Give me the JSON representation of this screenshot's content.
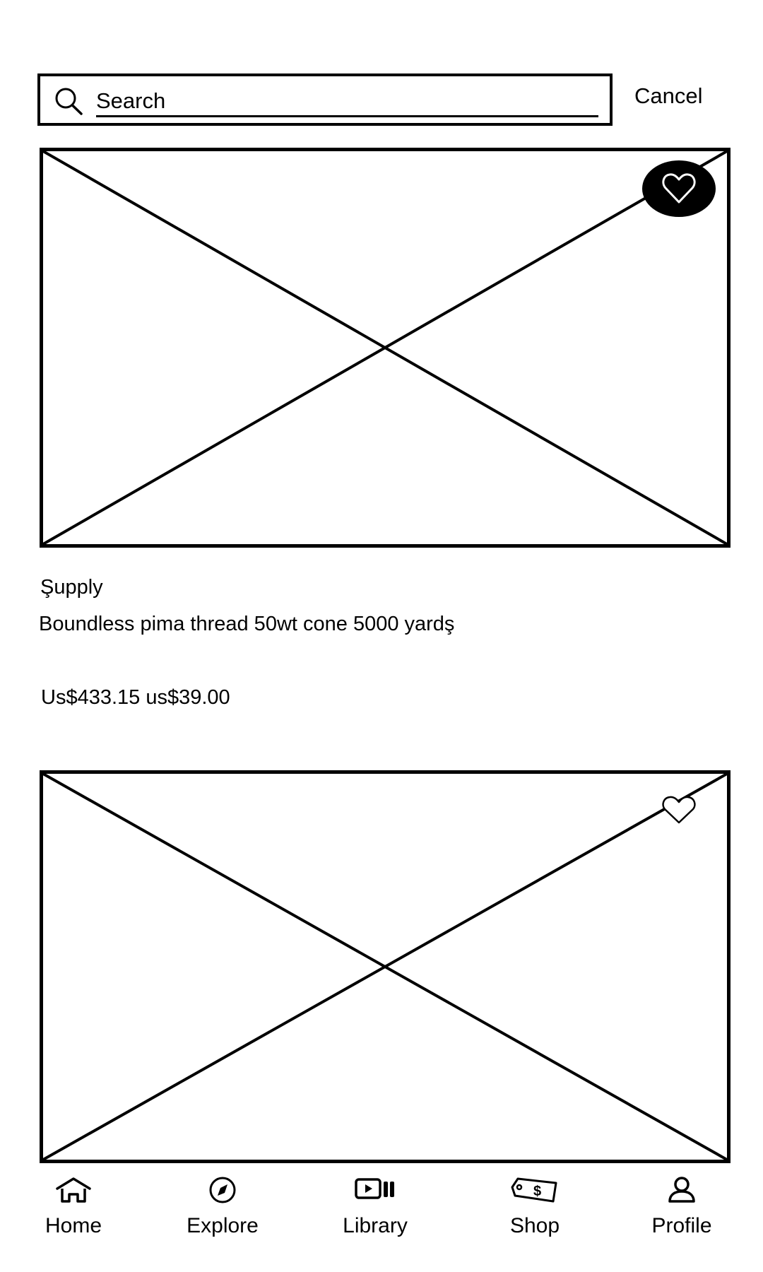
{
  "search": {
    "placeholder": "Search",
    "cancel_label": "Cancel",
    "icon": "search-icon"
  },
  "products": [
    {
      "image": "image-placeholder",
      "favorite_icon": "heart-icon",
      "favorited": true,
      "brand": "Şupply",
      "title": "Boundless pima thread 50wt cone 5000 yardş",
      "price": "Us$433.15 us$39.00"
    },
    {
      "image": "image-placeholder",
      "favorite_icon": "heart-icon",
      "favorited": false
    }
  ],
  "bottom_nav": {
    "items": [
      {
        "label": "Home",
        "icon": "home-icon"
      },
      {
        "label": "Explore",
        "icon": "compass-icon"
      },
      {
        "label": "Library",
        "icon": "library-icon"
      },
      {
        "label": "Shop",
        "icon": "price-tag-icon"
      },
      {
        "label": "Profile",
        "icon": "profile-icon"
      }
    ]
  },
  "colors": {
    "ink": "#000000",
    "background": "#ffffff"
  }
}
